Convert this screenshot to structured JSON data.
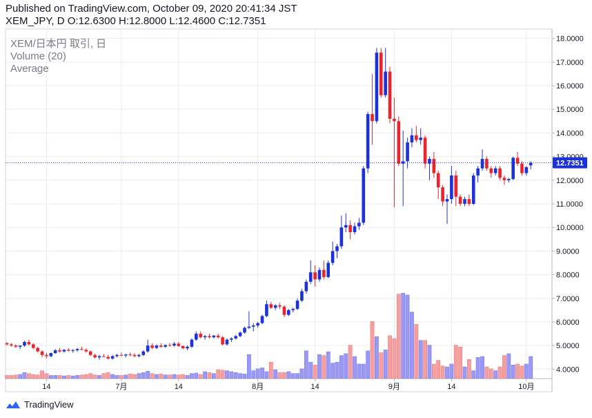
{
  "header": {
    "published": "Published on TradingView.com, October 09, 2020 20:41:34 JST",
    "ohlc": "XEM_JPY, D O:12.6300 H:12.8000 L:12.4600 C:12.7351"
  },
  "footer": {
    "brand": "TradingView"
  },
  "colors": {
    "up": "#1c32d6",
    "down": "#e8242e",
    "vol_up": "#9a9af5",
    "vol_down": "#f4a0a0",
    "grid": "#e9ecf2",
    "price_line": "#1c32d6"
  },
  "chart_data": {
    "type": "candlestick",
    "legend": [
      "XEM/日本円 取引, 日",
      "Volume (20)",
      "Average"
    ],
    "y_ticks": [
      "18.0000",
      "17.0000",
      "16.0000",
      "15.0000",
      "14.0000",
      "13.0000",
      "12.0000",
      "11.0000",
      "10.0000",
      "9.0000",
      "8.0000",
      "7.0000",
      "6.0000",
      "5.0000",
      "4.0000"
    ],
    "y_tick_values": [
      18,
      17,
      16,
      15,
      14,
      13,
      12,
      11,
      10,
      9,
      8,
      7,
      6,
      5,
      4
    ],
    "ylim": [
      3.6,
      18.4
    ],
    "x_ticks": [
      {
        "label": "14",
        "index": 9
      },
      {
        "label": "7月",
        "index": 26
      },
      {
        "label": "14",
        "index": 39
      },
      {
        "label": "8月",
        "index": 57
      },
      {
        "label": "14",
        "index": 70
      },
      {
        "label": "9月",
        "index": 88
      },
      {
        "label": "14",
        "index": 101
      },
      {
        "label": "10月",
        "index": 118
      }
    ],
    "last_price": 12.7351,
    "last_price_label": "12.7351",
    "candles": [
      [
        5.1,
        5.15,
        5.0,
        5.05
      ],
      [
        5.05,
        5.1,
        4.95,
        5.0
      ],
      [
        5.0,
        5.05,
        4.9,
        4.95
      ],
      [
        4.95,
        5.0,
        4.85,
        5.0
      ],
      [
        5.0,
        5.2,
        4.95,
        5.15
      ],
      [
        5.15,
        5.25,
        5.0,
        5.05
      ],
      [
        5.05,
        5.1,
        4.85,
        4.9
      ],
      [
        4.9,
        4.95,
        4.7,
        4.75
      ],
      [
        4.75,
        4.8,
        4.5,
        4.6
      ],
      [
        4.6,
        4.7,
        4.45,
        4.55
      ],
      [
        4.55,
        4.7,
        4.5,
        4.68
      ],
      [
        4.68,
        4.85,
        4.65,
        4.8
      ],
      [
        4.8,
        4.9,
        4.7,
        4.75
      ],
      [
        4.75,
        4.85,
        4.7,
        4.82
      ],
      [
        4.82,
        4.9,
        4.75,
        4.78
      ],
      [
        4.78,
        4.85,
        4.7,
        4.8
      ],
      [
        4.8,
        4.9,
        4.75,
        4.85
      ],
      [
        4.85,
        4.95,
        4.8,
        4.82
      ],
      [
        4.82,
        4.88,
        4.7,
        4.75
      ],
      [
        4.75,
        4.8,
        4.55,
        4.6
      ],
      [
        4.6,
        4.65,
        4.45,
        4.5
      ],
      [
        4.5,
        4.6,
        4.4,
        4.55
      ],
      [
        4.55,
        4.65,
        4.5,
        4.52
      ],
      [
        4.52,
        4.6,
        4.4,
        4.45
      ],
      [
        4.45,
        4.6,
        4.4,
        4.55
      ],
      [
        4.55,
        4.65,
        4.5,
        4.6
      ],
      [
        4.6,
        4.7,
        4.55,
        4.58
      ],
      [
        4.58,
        4.65,
        4.5,
        4.62
      ],
      [
        4.62,
        4.7,
        4.55,
        4.6
      ],
      [
        4.6,
        4.68,
        4.5,
        4.55
      ],
      [
        4.55,
        4.65,
        4.5,
        4.6
      ],
      [
        4.6,
        4.8,
        4.55,
        4.75
      ],
      [
        4.75,
        5.25,
        4.7,
        5.0
      ],
      [
        5.0,
        5.1,
        4.85,
        4.9
      ],
      [
        4.9,
        5.05,
        4.85,
        5.0
      ],
      [
        5.0,
        5.1,
        4.9,
        4.95
      ],
      [
        4.95,
        5.05,
        4.9,
        5.02
      ],
      [
        5.02,
        5.1,
        4.95,
        5.0
      ],
      [
        5.0,
        5.15,
        4.95,
        5.08
      ],
      [
        5.08,
        5.15,
        4.95,
        4.98
      ],
      [
        4.98,
        5.0,
        4.85,
        4.88
      ],
      [
        4.88,
        5.0,
        4.8,
        4.95
      ],
      [
        4.95,
        5.3,
        4.9,
        5.25
      ],
      [
        5.25,
        5.6,
        5.2,
        5.5
      ],
      [
        5.5,
        5.6,
        5.3,
        5.35
      ],
      [
        5.35,
        5.45,
        5.25,
        5.4
      ],
      [
        5.4,
        5.5,
        5.3,
        5.35
      ],
      [
        5.35,
        5.45,
        5.3,
        5.42
      ],
      [
        5.42,
        5.5,
        5.3,
        5.35
      ],
      [
        5.35,
        5.4,
        5.0,
        5.05
      ],
      [
        5.05,
        5.3,
        5.0,
        5.25
      ],
      [
        5.25,
        5.35,
        5.15,
        5.3
      ],
      [
        5.3,
        5.45,
        5.25,
        5.4
      ],
      [
        5.4,
        5.6,
        5.35,
        5.55
      ],
      [
        5.55,
        5.8,
        5.5,
        5.75
      ],
      [
        5.75,
        6.45,
        5.7,
        5.8
      ],
      [
        5.8,
        5.95,
        5.6,
        5.85
      ],
      [
        5.85,
        6.0,
        5.75,
        5.95
      ],
      [
        5.95,
        6.3,
        5.9,
        6.25
      ],
      [
        6.25,
        6.9,
        6.2,
        6.75
      ],
      [
        6.75,
        6.85,
        6.55,
        6.6
      ],
      [
        6.6,
        6.75,
        6.5,
        6.7
      ],
      [
        6.7,
        6.8,
        6.55,
        6.65
      ],
      [
        6.65,
        6.7,
        6.2,
        6.3
      ],
      [
        6.3,
        6.55,
        6.25,
        6.5
      ],
      [
        6.5,
        6.6,
        6.4,
        6.55
      ],
      [
        6.55,
        7.0,
        6.5,
        6.9
      ],
      [
        6.9,
        7.4,
        6.85,
        7.3
      ],
      [
        7.3,
        7.8,
        7.2,
        7.7
      ],
      [
        7.7,
        8.6,
        7.6,
        8.1
      ],
      [
        8.1,
        8.4,
        7.5,
        7.8
      ],
      [
        7.8,
        8.3,
        7.7,
        8.2
      ],
      [
        8.2,
        8.6,
        7.8,
        7.9
      ],
      [
        7.9,
        8.6,
        7.85,
        8.5
      ],
      [
        8.5,
        9.4,
        8.4,
        9.0
      ],
      [
        9.0,
        9.3,
        8.7,
        9.2
      ],
      [
        9.2,
        10.5,
        9.1,
        10.0
      ],
      [
        10.0,
        10.6,
        9.8,
        10.1
      ],
      [
        10.1,
        10.3,
        9.5,
        9.8
      ],
      [
        9.8,
        10.2,
        9.7,
        10.05
      ],
      [
        10.05,
        10.4,
        9.9,
        10.2
      ],
      [
        10.2,
        12.6,
        10.1,
        12.5
      ],
      [
        12.5,
        14.9,
        12.3,
        14.8
      ],
      [
        14.8,
        16.5,
        13.5,
        14.5
      ],
      [
        14.5,
        17.6,
        14.4,
        17.4
      ],
      [
        17.4,
        17.6,
        15.5,
        15.6
      ],
      [
        15.6,
        17.6,
        15.5,
        16.6
      ],
      [
        16.6,
        16.8,
        14.4,
        14.6
      ],
      [
        14.6,
        15.5,
        10.85,
        14.5
      ],
      [
        14.5,
        14.7,
        12.6,
        12.7
      ],
      [
        12.7,
        14.1,
        10.9,
        12.8
      ],
      [
        12.8,
        13.8,
        12.5,
        13.6
      ],
      [
        13.6,
        14.2,
        13.4,
        13.9
      ],
      [
        13.9,
        14.3,
        13.6,
        13.7
      ],
      [
        13.7,
        14.2,
        13.5,
        13.8
      ],
      [
        13.8,
        13.9,
        12.5,
        12.7
      ],
      [
        12.7,
        13.0,
        12.0,
        12.9
      ],
      [
        12.9,
        13.2,
        12.1,
        12.3
      ],
      [
        12.3,
        12.4,
        11.2,
        11.7
      ],
      [
        11.7,
        11.8,
        10.9,
        11.1
      ],
      [
        11.1,
        11.4,
        10.15,
        11.2
      ],
      [
        11.2,
        12.6,
        11.0,
        12.2
      ],
      [
        12.2,
        12.4,
        10.9,
        11.3
      ],
      [
        11.3,
        11.4,
        10.9,
        11.0
      ],
      [
        11.0,
        11.3,
        10.9,
        11.2
      ],
      [
        11.2,
        11.4,
        10.9,
        11.0
      ],
      [
        11.0,
        12.3,
        10.95,
        12.2
      ],
      [
        12.2,
        12.6,
        11.9,
        12.5
      ],
      [
        12.5,
        13.3,
        12.4,
        12.9
      ],
      [
        12.9,
        13.0,
        12.4,
        12.5
      ],
      [
        12.5,
        12.6,
        12.1,
        12.3
      ],
      [
        12.3,
        12.6,
        12.2,
        12.5
      ],
      [
        12.5,
        12.6,
        12.0,
        12.1
      ],
      [
        12.1,
        12.2,
        11.8,
        12.0
      ],
      [
        12.0,
        12.1,
        11.9,
        12.05
      ],
      [
        12.05,
        13.0,
        12.0,
        12.95
      ],
      [
        12.95,
        13.2,
        12.6,
        12.7
      ],
      [
        12.7,
        12.8,
        12.2,
        12.3
      ],
      [
        12.3,
        12.6,
        12.2,
        12.55
      ],
      [
        12.63,
        12.8,
        12.46,
        12.7351
      ]
    ],
    "volume": [
      0.3,
      0.3,
      0.35,
      0.4,
      0.6,
      0.5,
      0.4,
      0.35,
      0.8,
      0.5,
      0.3,
      0.3,
      0.3,
      0.25,
      0.3,
      0.25,
      0.3,
      0.35,
      0.4,
      0.5,
      0.35,
      0.3,
      0.5,
      0.6,
      0.4,
      0.3,
      0.3,
      0.35,
      0.45,
      0.4,
      0.5,
      0.6,
      0.75,
      0.5,
      0.4,
      0.45,
      0.35,
      0.35,
      0.4,
      0.35,
      0.4,
      0.3,
      0.5,
      0.55,
      0.4,
      0.7,
      0.6,
      0.5,
      0.9,
      0.85,
      0.8,
      0.7,
      0.6,
      0.5,
      0.45,
      2.5,
      0.8,
      1.0,
      1.1,
      0.7,
      1.7,
      0.9,
      0.6,
      0.6,
      0.7,
      0.5,
      0.5,
      1.0,
      2.9,
      1.7,
      1.4,
      2.5,
      2.4,
      2.8,
      1.6,
      1.7,
      2.4,
      2.6,
      3.5,
      2.3,
      1.5,
      1.5,
      2.9,
      6.0,
      4.4,
      2.7,
      3.0,
      4.5,
      4.2,
      8.9,
      9.0,
      8.8,
      7.0,
      5.7,
      4.0,
      4.0,
      3.5,
      1.5,
      1.9,
      1.3,
      1.2,
      1.5,
      3.5,
      3.3,
      1.2,
      2.0,
      0.8,
      2.2,
      2.3,
      1.2,
      1.0,
      0.8,
      1.2,
      2.4,
      2.6,
      1.4,
      1.5,
      1.3,
      1.5,
      2.3
    ],
    "volume_max": 9.5
  }
}
